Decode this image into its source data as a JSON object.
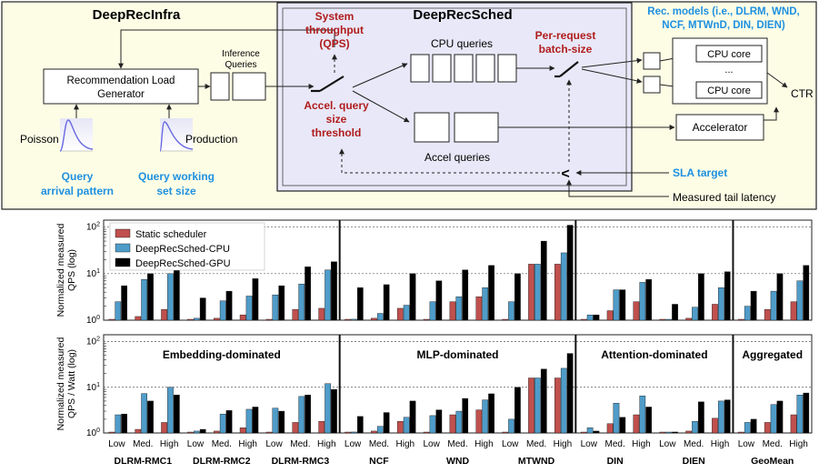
{
  "top": {
    "infra_title": "DeepRecInfra",
    "sched_title": "DeepRecSched",
    "load_gen_line1": "Recommendation Load",
    "load_gen_line2": "Generator",
    "inference_queries_line1": "Inference",
    "inference_queries_line2": "Queries",
    "poisson": "Poisson",
    "production": "Production",
    "query_arrival_line1": "Query",
    "query_arrival_line2": "arrival pattern",
    "query_working_line1": "Query working",
    "query_working_line2": "set size",
    "throughput_line1": "System",
    "throughput_line2": "throughput",
    "throughput_line3": "(QPS)",
    "cpu_queries": "CPU queries",
    "accel_queries": "Accel queries",
    "accel_thresh_line1": "Accel. query",
    "accel_thresh_line2": "size",
    "accel_thresh_line3": "threshold",
    "per_request_line1": "Per-request",
    "per_request_line2": "batch-size",
    "rec_models_line1": "Rec. models (i.e., DLRM, WND,",
    "rec_models_line2": "NCF, MTWnD, DIN, DIEN)",
    "cpu_core": "CPU core",
    "ellipsis": "...",
    "ctr": "CTR",
    "accelerator": "Accelerator",
    "sla_target": "SLA  target",
    "measured_tail": "Measured tail latency",
    "less_than": "<"
  },
  "colors": {
    "static": "#c0504d",
    "cpu": "#4f9cc9",
    "gpu": "#000000",
    "infra_bg": "#fdfde6",
    "sched_bg": "#e8e8f8",
    "red_text": "#b01c1c",
    "blue_text": "#1e90e0"
  },
  "chart_data": {
    "type": "bar",
    "legend": [
      "Static scheduler",
      "DeepRecSched-CPU",
      "DeepRecSched-GPU"
    ],
    "models": [
      "DLRM-RMC1",
      "DLRM-RMC2",
      "DLRM-RMC3",
      "NCF",
      "WND",
      "MTWND",
      "DIN",
      "DIEN",
      "GeoMean"
    ],
    "loads": [
      "Low",
      "Med.",
      "High"
    ],
    "region_labels": [
      "Embedding-dominated",
      "MLP-dominated",
      "Attention-dominated",
      "Aggregated"
    ],
    "top_ylabel_line1": "Normalized measured",
    "top_ylabel_line2": "QPS (log)",
    "bottom_ylabel_line1": "Normalized measured",
    "bottom_ylabel_line2": "QPS / Watt (log)",
    "yticks": [
      "10^0",
      "10^1",
      "10^2"
    ],
    "ylim": [
      1,
      100
    ],
    "y_scale": "log",
    "qps": [
      [
        [
          1,
          2.5,
          5.5
        ],
        [
          1.2,
          7.5,
          10
        ],
        [
          1.7,
          10,
          14
        ]
      ],
      [
        [
          1,
          1.1,
          3
        ],
        [
          1.1,
          2.6,
          4.2
        ],
        [
          1.3,
          3.3,
          7.8
        ]
      ],
      [
        [
          1,
          3.5,
          5.5
        ],
        [
          1.7,
          6,
          14
        ],
        [
          1.8,
          12,
          18
        ]
      ],
      [
        [
          1,
          1.05,
          5
        ],
        [
          1.1,
          1.4,
          5.8
        ],
        [
          1.8,
          2.1,
          10
        ]
      ],
      [
        [
          1,
          2.5,
          7
        ],
        [
          2.5,
          3.2,
          12
        ],
        [
          3.2,
          5,
          15
        ]
      ],
      [
        [
          1,
          2.5,
          10
        ],
        [
          16,
          16,
          50
        ],
        [
          16,
          28,
          110
        ]
      ],
      [
        [
          1,
          1.3,
          1.3
        ],
        [
          1.6,
          4.5,
          4.5
        ],
        [
          2.5,
          6.5,
          7.5
        ]
      ],
      [
        [
          1,
          1,
          2.2
        ],
        [
          1.1,
          1.9,
          10
        ],
        [
          2.2,
          5,
          11
        ]
      ],
      [
        [
          1,
          2,
          4.2
        ],
        [
          1.7,
          4.2,
          10
        ],
        [
          2.5,
          7,
          15
        ]
      ]
    ],
    "qps_watt": [
      [
        [
          1,
          2.5,
          2.6
        ],
        [
          1.2,
          7.3,
          5
        ],
        [
          1.7,
          10,
          6.8
        ]
      ],
      [
        [
          1,
          1.1,
          1.2
        ],
        [
          1.1,
          2.6,
          3.1
        ],
        [
          1.3,
          3.3,
          3.7
        ]
      ],
      [
        [
          1,
          3.5,
          3
        ],
        [
          1.7,
          6.3,
          6.8
        ],
        [
          1.8,
          12,
          9
        ]
      ],
      [
        [
          1,
          1.05,
          2.3
        ],
        [
          1.1,
          1.4,
          2.8
        ],
        [
          1.8,
          2.2,
          5
        ]
      ],
      [
        [
          1,
          2.4,
          3.2
        ],
        [
          2.5,
          3,
          5.7
        ],
        [
          3.2,
          5.3,
          7.2
        ]
      ],
      [
        [
          1,
          2,
          10
        ],
        [
          16,
          16,
          25
        ],
        [
          16,
          26,
          55
        ]
      ],
      [
        [
          1,
          1.3,
          1.1
        ],
        [
          1.6,
          4.5,
          2.2
        ],
        [
          2.5,
          6.5,
          3.7
        ]
      ],
      [
        [
          1,
          1,
          1.05
        ],
        [
          1.1,
          1.8,
          4.8
        ],
        [
          2.1,
          5,
          5.3
        ]
      ],
      [
        [
          1,
          1.7,
          2
        ],
        [
          1.7,
          4.2,
          5
        ],
        [
          2.5,
          6.8,
          7.5
        ]
      ]
    ]
  }
}
